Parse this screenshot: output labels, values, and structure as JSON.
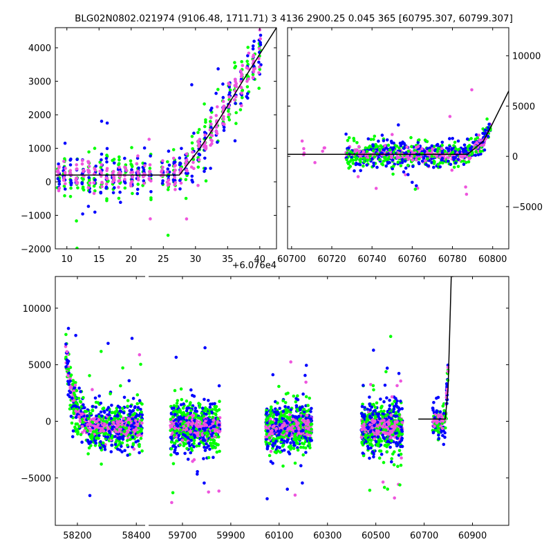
{
  "chart_data": {
    "title": "BLG02N0802.021974 (9106.48, 1711.71)   3 4136 2900.25 0.045 365 [60795.307, 60799.307]",
    "colors": {
      "green": "#00ff00",
      "blue": "#0000ff",
      "magenta": "#ee55dd",
      "model": "#000000"
    },
    "panels": [
      {
        "id": "top-left",
        "type": "scatter",
        "xlim": [
          8.2,
          42.6
        ],
        "ylim": [
          -2000,
          4600
        ],
        "xticks": [
          10,
          15,
          20,
          25,
          30,
          35,
          40
        ],
        "xtick_labels": [
          "10",
          "15",
          "20",
          "25",
          "30",
          "35",
          "40"
        ],
        "yticks": [
          -2000,
          -1000,
          0,
          1000,
          2000,
          3000,
          4000
        ],
        "ytick_labels": [
          "−2000",
          "−1000",
          "0",
          "1000",
          "2000",
          "3000",
          "4000"
        ],
        "offset_label": "+6.076e4",
        "model": {
          "x": [
            8.2,
            27.5,
            30.5,
            33.5,
            37.0,
            42.6
          ],
          "y": [
            200,
            200,
            950,
            1800,
            2900,
            4600
          ]
        }
      },
      {
        "id": "top-right",
        "type": "scatter",
        "xlim": [
          60698,
          60808
        ],
        "ylim": [
          -9200,
          12800
        ],
        "xticks": [
          60700,
          60720,
          60740,
          60760,
          60780,
          60800
        ],
        "xtick_labels": [
          "60700",
          "60720",
          "60740",
          "60760",
          "60780",
          "60800"
        ],
        "yticks": [
          -5000,
          0,
          5000,
          10000
        ],
        "ytick_labels": [
          "−5000",
          "0",
          "5000",
          "10000"
        ],
        "model": {
          "x": [
            60698,
            60787.5,
            60795.3,
            60799.3,
            60808
          ],
          "y": [
            200,
            200,
            1500,
            3000,
            6500
          ]
        }
      },
      {
        "id": "bottom",
        "type": "scatter",
        "segments": [
          {
            "xlim": [
              58125,
              58430
            ],
            "xticks": [
              58200,
              58400
            ],
            "xtick_labels": [
              "58200",
              "58400"
            ]
          },
          {
            "xlim": [
              59560,
              61050
            ],
            "xticks": [
              59700,
              59900,
              60100,
              60300,
              60500,
              60700,
              60900
            ],
            "xtick_labels": [
              "59700",
              "59900",
              "60100",
              "60300",
              "60500",
              "60700",
              "60900"
            ]
          }
        ],
        "ylim": [
          -9200,
          12800
        ],
        "yticks": [
          -5000,
          0,
          5000,
          10000
        ],
        "ytick_labels": [
          "−5000",
          "0",
          "5000",
          "10000"
        ],
        "model": {
          "x": [
            60676,
            60787.5,
            60799.3,
            60812,
            60820
          ],
          "y": [
            200,
            200,
            3000,
            12800,
            12800
          ]
        }
      }
    ]
  }
}
